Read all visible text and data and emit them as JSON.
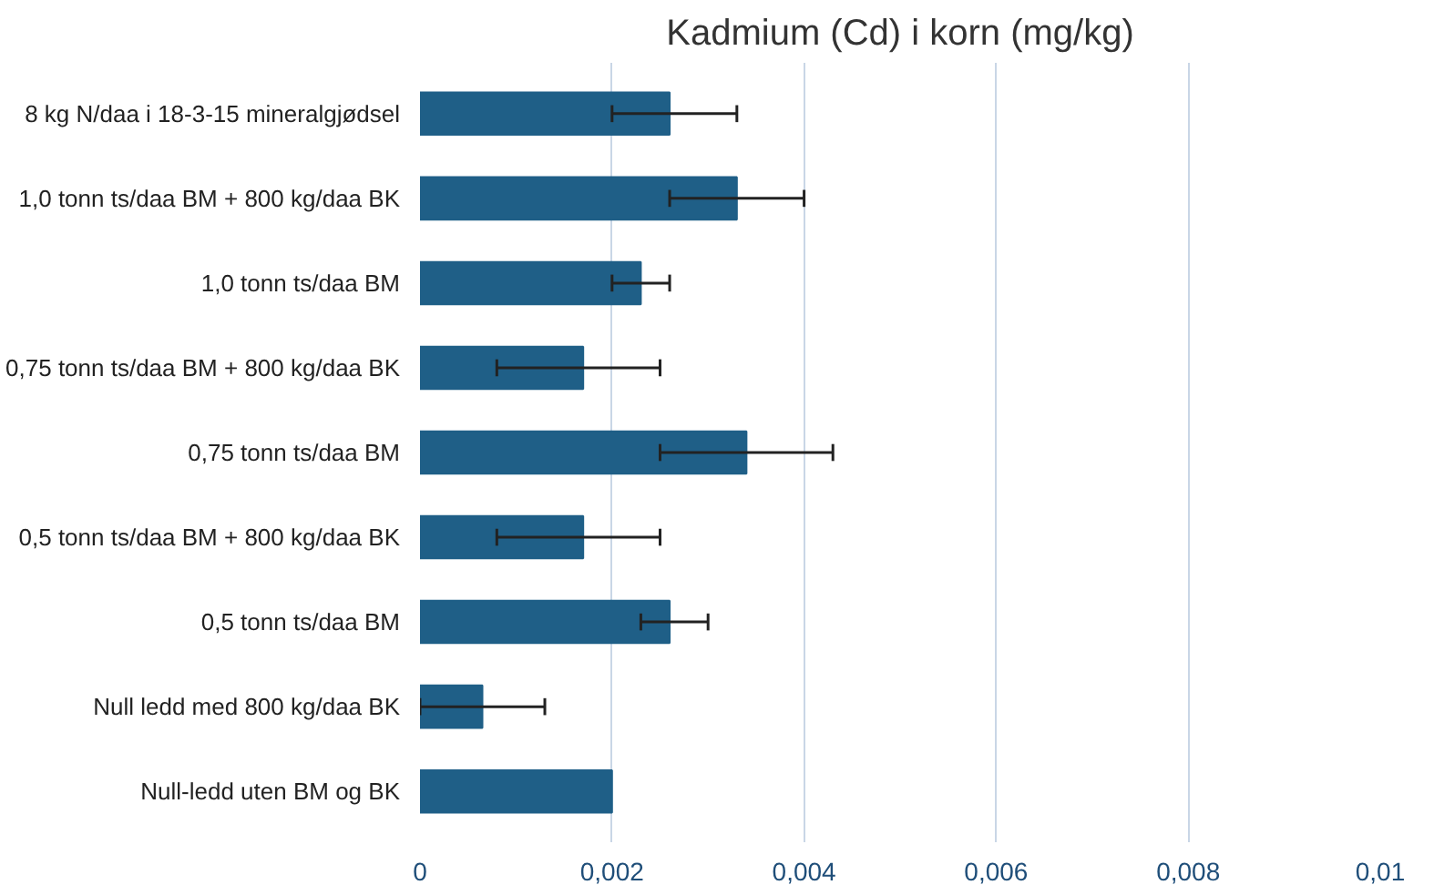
{
  "chart_data": {
    "type": "bar",
    "orientation": "horizontal",
    "title": "Kadmium (Cd) i korn (mg/kg)",
    "categories": [
      "8 kg N/daa i 18-3-15 mineralgjødsel",
      "1,0 tonn ts/daa BM + 800 kg/daa BK",
      "1,0 tonn ts/daa BM",
      "0,75 tonn ts/daa BM + 800 kg/daa BK",
      "0,75 tonn ts/daa BM",
      "0,5 tonn ts/daa BM + 800 kg/daa BK",
      "0,5 tonn ts/daa BM",
      "Null ledd med 800 kg/daa BK",
      "Null-ledd uten BM og BK"
    ],
    "values": [
      0.0026,
      0.0033,
      0.0023,
      0.0017,
      0.0034,
      0.0017,
      0.0026,
      0.00065,
      0.002
    ],
    "errors": [
      [
        0.002,
        0.0033
      ],
      [
        0.0026,
        0.004
      ],
      [
        0.002,
        0.0026
      ],
      [
        0.0008,
        0.0025
      ],
      [
        0.0025,
        0.0043
      ],
      [
        0.0008,
        0.0025
      ],
      [
        0.0023,
        0.003
      ],
      [
        0.0,
        0.0013
      ],
      null
    ],
    "color": "#1f5f87",
    "xlim": [
      0,
      0.01
    ],
    "xticks": [
      {
        "value": 0,
        "label": "0"
      },
      {
        "value": 0.002,
        "label": "0,002"
      },
      {
        "value": 0.004,
        "label": "0,004"
      },
      {
        "value": 0.006,
        "label": "0,006"
      },
      {
        "value": 0.008,
        "label": "0,008"
      },
      {
        "value": 0.01,
        "label": "0,01"
      }
    ],
    "grid": "x"
  }
}
